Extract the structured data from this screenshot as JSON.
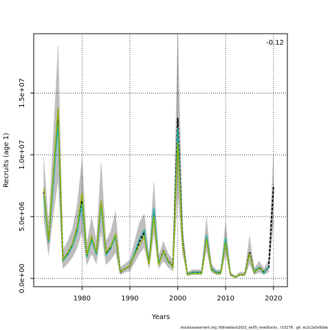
{
  "chart_data": {
    "type": "line",
    "xlabel": "Years",
    "ylabel": "Recruits (age 1)",
    "annotation": "-0.12",
    "footer": "stockassessment.org, NShaddock2021_ex05_newStocks , r15278 , git: ec2c2a0c6dde",
    "xlim": [
      1969.9,
      2022.9
    ],
    "ylim": [
      -670000,
      19800000
    ],
    "xticks": [
      1980,
      1990,
      2000,
      2010,
      2020
    ],
    "yticks": [
      {
        "value": 0,
        "label": "0.0e+00"
      },
      {
        "value": 5000000,
        "label": "5.0e+06"
      },
      {
        "value": 10000000,
        "label": "1.0e+07"
      },
      {
        "value": 15000000,
        "label": "1.5e+07"
      }
    ],
    "grid": true,
    "x": [
      1972,
      1973,
      1974,
      1975,
      1976,
      1977,
      1978,
      1979,
      1980,
      1981,
      1982,
      1983,
      1984,
      1985,
      1986,
      1987,
      1988,
      1989,
      1990,
      1991,
      1992,
      1993,
      1994,
      1995,
      1996,
      1997,
      1998,
      1999,
      2000,
      2001,
      2002,
      2003,
      2004,
      2005,
      2006,
      2007,
      2008,
      2009,
      2010,
      2011,
      2012,
      2013,
      2014,
      2015,
      2016,
      2017,
      2018,
      2019,
      2020
    ],
    "band": {
      "color": "#bebebe",
      "upper": [
        9800000.0,
        4300000.0,
        11500000.0,
        18800000.0,
        2300000.0,
        3000000.0,
        4000000.0,
        6000000.0,
        9600000.0,
        2800000.0,
        5000000.0,
        3000000.0,
        9400000.0,
        3000000.0,
        3800000.0,
        5400000.0,
        900000.0,
        1200000.0,
        1500000.0,
        3000000.0,
        4500000.0,
        5200000.0,
        1800000.0,
        7800000.0,
        1800000.0,
        3000000.0,
        2000000.0,
        1500000.0,
        19700000.0,
        4200000.0,
        500000.0,
        700000.0,
        700000.0,
        700000.0,
        4900000.0,
        1200000.0,
        700000.0,
        700000.0,
        4500000.0,
        500000.0,
        200000.0,
        500000.0,
        500000.0,
        3400000.0,
        800000.0,
        1400000.0,
        800000.0,
        1500000.0,
        10000000.0
      ],
      "lower": [
        4800000.0,
        1900000.0,
        5200000.0,
        8000000.0,
        800000.0,
        1200000.0,
        1700000.0,
        2500000.0,
        3800000.0,
        1100000.0,
        2000000.0,
        1200000.0,
        3800000.0,
        1100000.0,
        1500000.0,
        2100000.0,
        300000.0,
        500000.0,
        600000.0,
        1300000.0,
        2000000.0,
        2500000.0,
        800000.0,
        3600000.0,
        800000.0,
        1400000.0,
        900000.0,
        600000.0,
        7000000.0,
        2000000.0,
        200000.0,
        300000.0,
        300000.0,
        300000.0,
        2300000.0,
        500000.0,
        300000.0,
        300000.0,
        2000000.0,
        200000.0,
        50000.0,
        200000.0,
        200000.0,
        1200000.0,
        300000.0,
        500000.0,
        300000.0,
        500000.0,
        4500000.0
      ]
    },
    "series": [
      {
        "color": "#000000",
        "values": [
          7000000.0,
          3000000.0,
          8000000.0,
          13000000.0,
          1500000.0,
          2000000.0,
          2700000.0,
          4000000.0,
          6300000.0,
          1800000.0,
          3300000.0,
          2000000.0,
          6100000.0,
          2000000.0,
          2500000.0,
          3500000.0,
          500000.0,
          800000.0,
          1000000.0,
          2000000.0,
          3000000.0,
          3700000.0,
          1200000.0,
          5500000.0,
          1200000.0,
          2200000.0,
          1400000.0,
          1000000.0,
          13000000.0,
          3000000.0,
          300000.0,
          500000.0,
          500000.0,
          500000.0,
          3400000.0,
          800000.0,
          500000.0,
          500000.0,
          3100000.0,
          300000.0,
          100000.0,
          300000.0,
          300000.0,
          2100000.0,
          500000.0,
          900000.0,
          500000.0,
          900000.0,
          7400000.0
        ]
      },
      {
        "color": "#20b2aa",
        "values": [
          6600000.0,
          2900000.0,
          7600000.0,
          12500000.0,
          1400000.0,
          1900000.0,
          2600000.0,
          3800000.0,
          6000000.0,
          1700000.0,
          3100000.0,
          1900000.0,
          5900000.0,
          1900000.0,
          2400000.0,
          3400000.0,
          500000.0,
          800000.0,
          1000000.0,
          2100000.0,
          3200000.0,
          3900000.0,
          1200000.0,
          5700000.0,
          1300000.0,
          2100000.0,
          1300000.0,
          1000000.0,
          12200000.0,
          2900000.0,
          300000.0,
          500000.0,
          500000.0,
          500000.0,
          3500000.0,
          800000.0,
          500000.0,
          500000.0,
          3300000.0,
          300000.0,
          100000.0,
          300000.0,
          300000.0,
          2000000.0,
          600000.0,
          900000.0,
          400000.0,
          1000000.0,
          null
        ]
      },
      {
        "color": "#8fb300",
        "values": [
          7300000.0,
          3100000.0,
          8400000.0,
          13800000.0,
          1500000.0,
          2100000.0,
          2800000.0,
          4200000.0,
          6900000.0,
          1900000.0,
          3400000.0,
          2100000.0,
          6300000.0,
          2100000.0,
          2600000.0,
          3600000.0,
          500000.0,
          800000.0,
          1000000.0,
          1900000.0,
          2700000.0,
          3400000.0,
          1100000.0,
          5000000.0,
          1100000.0,
          2200000.0,
          1400000.0,
          900000.0,
          11000000.0,
          2800000.0,
          300000.0,
          400000.0,
          400000.0,
          400000.0,
          3200000.0,
          700000.0,
          400000.0,
          400000.0,
          2900000.0,
          300000.0,
          100000.0,
          300000.0,
          300000.0,
          2000000.0,
          500000.0,
          800000.0,
          600000.0,
          null,
          null
        ]
      }
    ]
  }
}
